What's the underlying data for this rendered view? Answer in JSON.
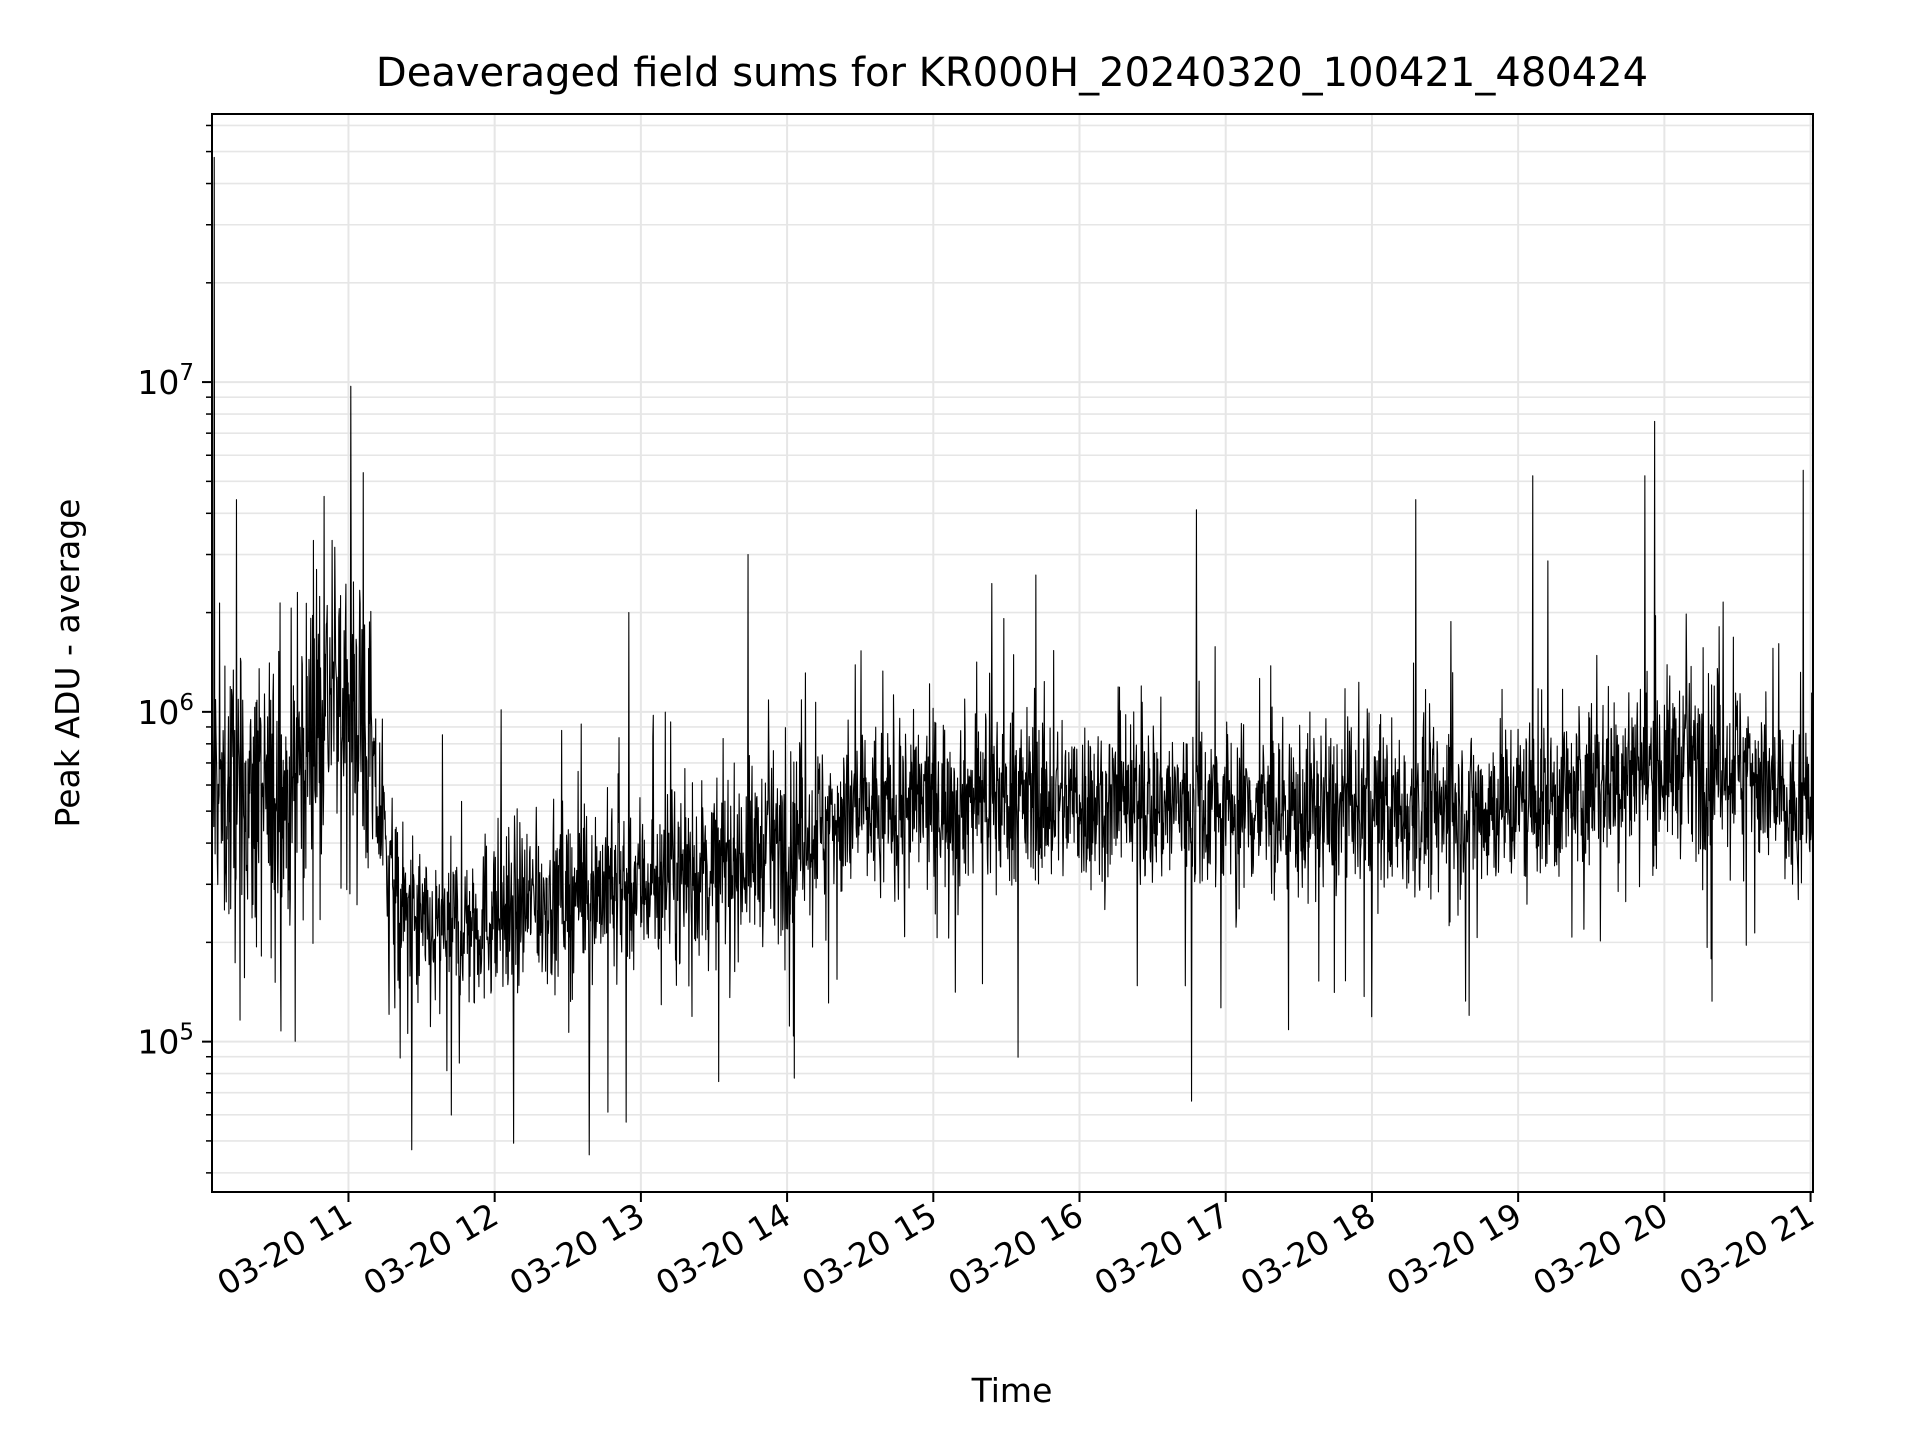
{
  "chart_data": {
    "type": "line",
    "title": "Deaveraged field sums for KR000H_20240320_100421_480424",
    "xlabel": "Time",
    "ylabel": "Peak ADU - average",
    "x_range": [
      "2024-03-20 10:04",
      "2024-03-20 21:01"
    ],
    "x_ticks": [
      "03-20 11",
      "03-20 12",
      "03-20 13",
      "03-20 14",
      "03-20 15",
      "03-20 16",
      "03-20 17",
      "03-20 18",
      "03-20 19",
      "03-20 20",
      "03-20 21"
    ],
    "y_scale": "log",
    "ylim": [
      35000,
      65000000
    ],
    "y_ticks": [
      {
        "base": "10",
        "exp": "5",
        "value": 100000
      },
      {
        "base": "10",
        "exp": "6",
        "value": 1000000
      },
      {
        "base": "10",
        "exp": "7",
        "value": 10000000
      }
    ],
    "grid": true,
    "line_color": "#000000",
    "grid_color": "#e6e6e6",
    "series": [
      {
        "x": [
          "2024-03-20 10:04",
          "2024-03-20 10:20",
          "2024-03-20 10:35",
          "2024-03-20 10:50",
          "2024-03-20 11:05",
          "2024-03-20 11:20",
          "2024-03-20 11:35",
          "2024-03-20 11:50",
          "2024-03-20 12:20",
          "2024-03-20 12:50",
          "2024-03-20 13:20",
          "2024-03-20 13:50",
          "2024-03-20 14:20",
          "2024-03-20 14:50",
          "2024-03-20 15:20",
          "2024-03-20 15:50",
          "2024-03-20 16:20",
          "2024-03-20 16:50",
          "2024-03-20 17:20",
          "2024-03-20 17:50",
          "2024-03-20 18:20",
          "2024-03-20 18:50",
          "2024-03-20 19:20",
          "2024-03-20 19:50",
          "2024-03-20 20:20",
          "2024-03-20 20:35",
          "2024-03-20 20:50",
          "2024-03-20 21:01"
        ],
        "y": [
          600000,
          500000,
          550000,
          1100000,
          1000000,
          250000,
          200000,
          230000,
          270000,
          300000,
          320000,
          380000,
          480000,
          520000,
          560000,
          540000,
          520000,
          530000,
          500000,
          500000,
          510000,
          520000,
          560000,
          680000,
          720000,
          700000,
          480000,
          520000
        ],
        "spikes": [
          {
            "x": "2024-03-20 10:05",
            "y": 48000000
          },
          {
            "x": "2024-03-20 10:14",
            "y": 4400000
          },
          {
            "x": "2024-03-20 10:50",
            "y": 4500000
          },
          {
            "x": "2024-03-20 11:26",
            "y": 47000
          },
          {
            "x": "2024-03-20 12:55",
            "y": 2000000
          },
          {
            "x": "2024-03-20 12:54",
            "y": 57000
          },
          {
            "x": "2024-03-20 13:44",
            "y": 3000000
          },
          {
            "x": "2024-03-20 15:42",
            "y": 2600000
          },
          {
            "x": "2024-03-20 16:48",
            "y": 4100000
          },
          {
            "x": "2024-03-20 16:46",
            "y": 66000
          },
          {
            "x": "2024-03-20 18:18",
            "y": 4400000
          },
          {
            "x": "2024-03-20 19:06",
            "y": 5200000
          },
          {
            "x": "2024-03-20 19:52",
            "y": 5200000
          },
          {
            "x": "2024-03-20 19:56",
            "y": 7600000
          },
          {
            "x": "2024-03-20 20:57",
            "y": 5400000
          }
        ]
      }
    ]
  }
}
